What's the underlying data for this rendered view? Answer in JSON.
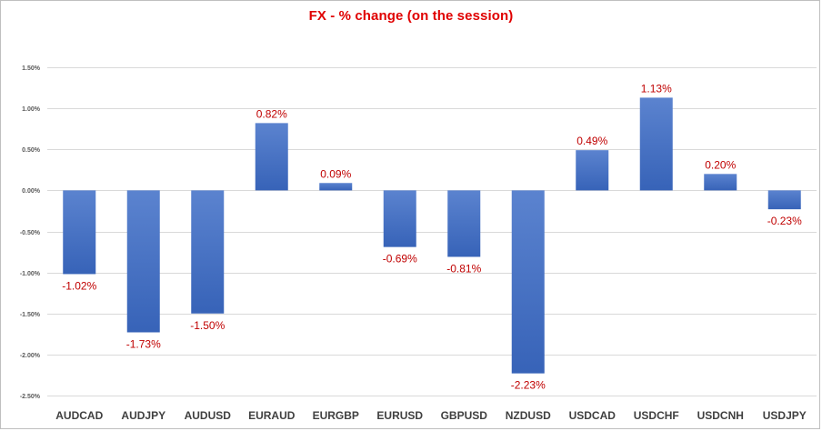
{
  "chart_data": {
    "type": "bar",
    "title": "FX - % change (on the session)",
    "xlabel": "",
    "ylabel": "",
    "ylim": [
      -2.5,
      1.5
    ],
    "yticks": [
      "1.50%",
      "1.00%",
      "0.50%",
      "0.00%",
      "-0.50%",
      "-1.00%",
      "-1.50%",
      "-2.00%",
      "-2.50%"
    ],
    "ytick_values": [
      1.5,
      1.0,
      0.5,
      0.0,
      -0.5,
      -1.0,
      -1.5,
      -2.0,
      -2.5
    ],
    "grid": true,
    "legend": "none",
    "categories": [
      "AUDCAD",
      "AUDJPY",
      "AUDUSD",
      "EURAUD",
      "EURGBP",
      "EURUSD",
      "GBPUSD",
      "NZDUSD",
      "USDCAD",
      "USDCHF",
      "USDCNH",
      "USDJPY"
    ],
    "values": [
      -1.02,
      -1.73,
      -1.5,
      0.82,
      0.09,
      -0.69,
      -0.81,
      -2.23,
      0.49,
      1.13,
      0.2,
      -0.23
    ],
    "data_labels": [
      "-1.02%",
      "-1.73%",
      "-1.50%",
      "0.82%",
      "0.09%",
      "-0.69%",
      "-0.81%",
      "-2.23%",
      "0.49%",
      "1.13%",
      "0.20%",
      "-0.23%"
    ],
    "colors": {
      "bar_top": "#5b83cf",
      "bar_bottom": "#3763b8",
      "title": "#e00000",
      "data_label": "#c00000",
      "grid": "#d9d9d9",
      "axis": "#404040"
    }
  }
}
